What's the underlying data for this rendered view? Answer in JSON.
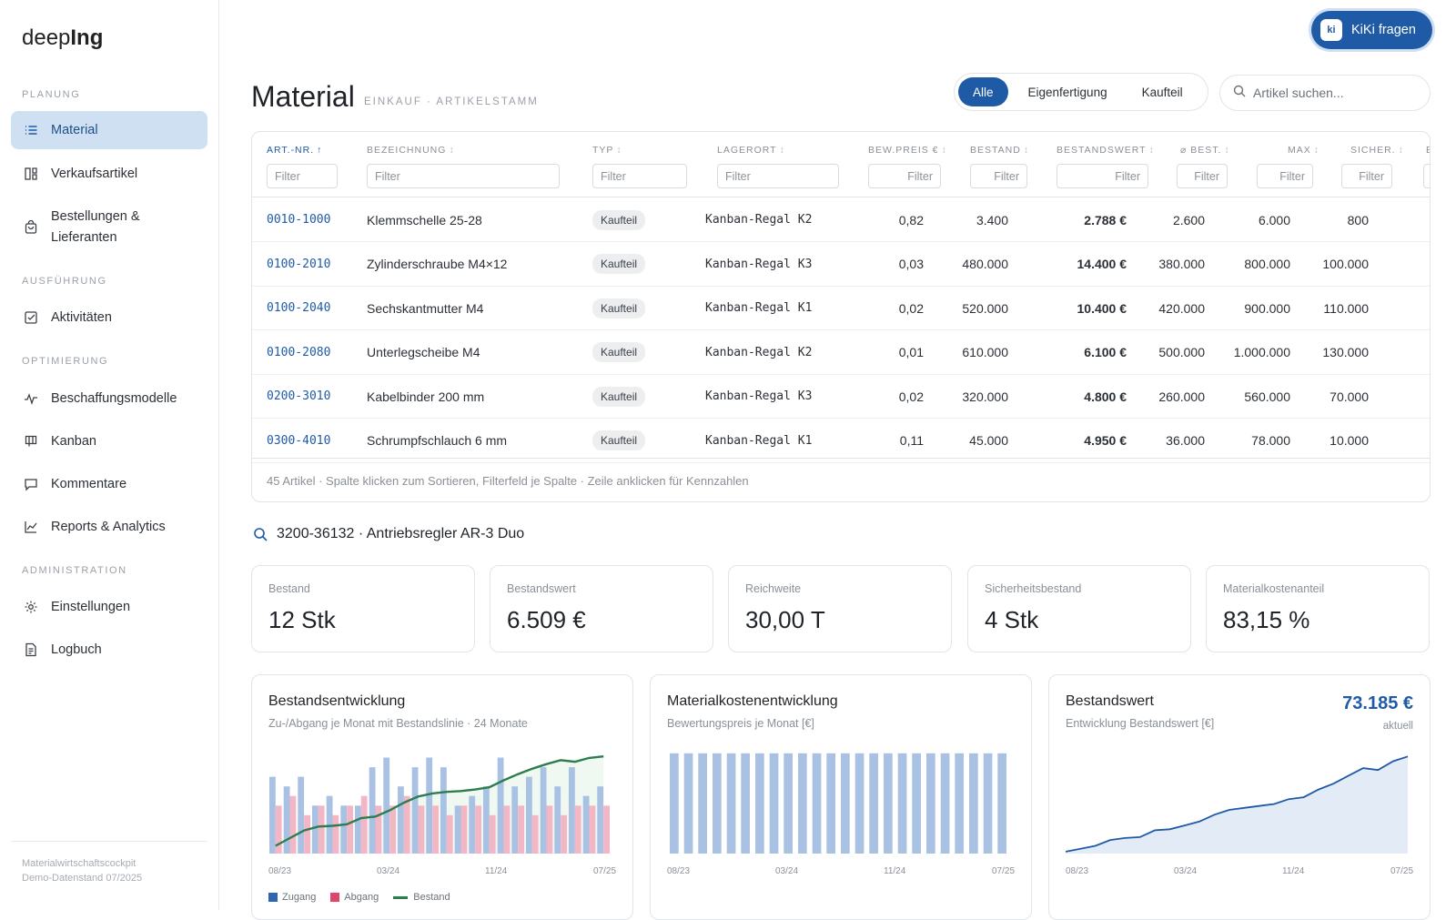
{
  "app": {
    "logo_light": "deep",
    "logo_bold": "Ing"
  },
  "sidebar": {
    "sections": [
      {
        "label": "PLANUNG"
      },
      {
        "label": "AUSFÜHRUNG"
      },
      {
        "label": "OPTIMIERUNG"
      },
      {
        "label": "ADMINISTRATION"
      }
    ],
    "items": [
      {
        "label": "Material",
        "icon": "list-icon",
        "active": true
      },
      {
        "label": "Verkaufsartikel",
        "icon": "catalog-icon"
      },
      {
        "label": "Bestellungen & Lieferanten",
        "icon": "shopping-bag-icon"
      },
      {
        "label": "Aktivitäten",
        "icon": "checkbox-icon"
      },
      {
        "label": "Beschaffungsmodelle",
        "icon": "pulse-icon"
      },
      {
        "label": "Kanban",
        "icon": "board-icon"
      },
      {
        "label": "Kommentare",
        "icon": "comment-icon"
      },
      {
        "label": "Reports & Analytics",
        "icon": "line-chart-icon"
      },
      {
        "label": "Einstellungen",
        "icon": "gear-icon"
      },
      {
        "label": "Logbuch",
        "icon": "document-icon"
      }
    ],
    "footer_line1": "Materialwirtschaftscockpit",
    "footer_line2": "Demo-Datenstand 07/2025"
  },
  "kiki": {
    "badge": "ki",
    "label": "KiKi fragen"
  },
  "header": {
    "title": "Material",
    "subtitle": "EINKAUF · ARTIKELSTAMM"
  },
  "filter_tabs": [
    "Alle",
    "Eigenfertigung",
    "Kaufteil"
  ],
  "search": {
    "placeholder": "Artikel suchen..."
  },
  "table": {
    "columns": [
      "ART.-NR.",
      "BEZEICHNUNG",
      "TYP",
      "LAGERORT",
      "BEW.PREIS €",
      "BESTAND",
      "BESTANDSWERT",
      "⌀ BEST.",
      "MAX",
      "SICHER.",
      "B"
    ],
    "filter_placeholder": "Filter",
    "rows": [
      {
        "artnr": "0010-1000",
        "bez": "Klemmschelle 25-28",
        "typ": "Kaufteil",
        "lager": "Kanban-Regal K2",
        "preis": "0,82",
        "bestand": "3.400",
        "wert": "2.788 €",
        "avg": "2.600",
        "max": "6.000",
        "sicher": "800"
      },
      {
        "artnr": "0100-2010",
        "bez": "Zylinderschraube M4×12",
        "typ": "Kaufteil",
        "lager": "Kanban-Regal K3",
        "preis": "0,03",
        "bestand": "480.000",
        "wert": "14.400 €",
        "avg": "380.000",
        "max": "800.000",
        "sicher": "100.000"
      },
      {
        "artnr": "0100-2040",
        "bez": "Sechskantmutter M4",
        "typ": "Kaufteil",
        "lager": "Kanban-Regal K1",
        "preis": "0,02",
        "bestand": "520.000",
        "wert": "10.400 €",
        "avg": "420.000",
        "max": "900.000",
        "sicher": "110.000"
      },
      {
        "artnr": "0100-2080",
        "bez": "Unterlegscheibe M4",
        "typ": "Kaufteil",
        "lager": "Kanban-Regal K2",
        "preis": "0,01",
        "bestand": "610.000",
        "wert": "6.100 €",
        "avg": "500.000",
        "max": "1.000.000",
        "sicher": "130.000"
      },
      {
        "artnr": "0200-3010",
        "bez": "Kabelbinder 200 mm",
        "typ": "Kaufteil",
        "lager": "Kanban-Regal K3",
        "preis": "0,02",
        "bestand": "320.000",
        "wert": "4.800 €",
        "avg": "260.000",
        "max": "560.000",
        "sicher": "70.000"
      },
      {
        "artnr": "0300-4010",
        "bez": "Schrumpfschlauch 6 mm",
        "typ": "Kaufteil",
        "lager": "Kanban-Regal K1",
        "preis": "0,11",
        "bestand": "45.000",
        "wert": "4.950 €",
        "avg": "36.000",
        "max": "78.000",
        "sicher": "10.000"
      }
    ],
    "footer": "45 Artikel · Spalte klicken zum Sortieren, Filterfeld je Spalte · Zeile anklicken für Kennzahlen"
  },
  "detail": {
    "title": "3200-36132 · Antriebsregler AR-3 Duo",
    "kpis": [
      {
        "label": "Bestand",
        "value": "12 Stk"
      },
      {
        "label": "Bestandswert",
        "value": "6.509 €"
      },
      {
        "label": "Reichweite",
        "value": "30,00 T"
      },
      {
        "label": "Sicherheitsbestand",
        "value": "4 Stk"
      },
      {
        "label": "Materialkostenanteil",
        "value": "83,15 %"
      }
    ]
  },
  "charts": {
    "c1": {
      "title": "Bestandsentwicklung",
      "subtitle": "Zu-/Abgang je Monat mit Bestandslinie · 24 Monate",
      "ticks": [
        "08/23",
        "03/24",
        "11/24",
        "07/25"
      ],
      "legend": [
        "Zugang",
        "Abgang",
        "Bestand"
      ]
    },
    "c2": {
      "title": "Materialkostenentwicklung",
      "subtitle": "Bewertungspreis je Monat [€]",
      "ticks": [
        "08/23",
        "03/24",
        "11/24",
        "07/25"
      ]
    },
    "c3": {
      "title": "Bestandswert",
      "subtitle": "Entwicklung Bestandswert [€]",
      "value": "73.185 €",
      "value_sub": "aktuell",
      "ticks": [
        "08/23",
        "03/24",
        "11/24",
        "07/25"
      ]
    }
  },
  "colors": {
    "accent": "#1f5aa6",
    "zugang": "#a9c2e3",
    "abgang": "#f2b6c4",
    "bestand": "#2e7d4f",
    "area": "#e3ebf6"
  },
  "chart_data": [
    {
      "type": "bar",
      "title": "Bestandsentwicklung",
      "x": [
        "08/23",
        "09/23",
        "10/23",
        "11/23",
        "12/23",
        "01/24",
        "02/24",
        "03/24",
        "04/24",
        "05/24",
        "06/24",
        "07/24",
        "08/24",
        "09/24",
        "10/24",
        "11/24",
        "12/24",
        "01/25",
        "02/25",
        "03/25",
        "04/25",
        "05/25",
        "06/25",
        "07/25"
      ],
      "series": [
        {
          "name": "Zugang",
          "values": [
            8,
            7,
            8,
            5,
            6,
            5,
            5,
            9,
            10,
            7,
            9,
            10,
            9,
            5,
            6,
            7,
            10,
            7,
            8,
            9,
            7,
            9,
            6,
            7
          ]
        },
        {
          "name": "Abgang",
          "values": [
            5,
            6,
            4,
            5,
            4,
            5,
            6,
            5,
            5,
            6,
            5,
            5,
            4,
            5,
            5,
            4,
            5,
            5,
            4,
            5,
            4,
            5,
            5,
            5
          ]
        },
        {
          "name": "Bestand",
          "values": [
            1,
            2,
            3,
            3.5,
            3.6,
            3.8,
            4.6,
            4.8,
            5.6,
            6.6,
            7.4,
            7.8,
            8,
            8.1,
            8.3,
            8.6,
            9.5,
            10.3,
            11,
            11.6,
            12.1,
            11.9,
            12.4,
            12.6
          ]
        }
      ]
    },
    {
      "type": "bar",
      "title": "Materialkostenentwicklung",
      "x": [
        "08/23",
        "09/23",
        "10/23",
        "11/23",
        "12/23",
        "01/24",
        "02/24",
        "03/24",
        "04/24",
        "05/24",
        "06/24",
        "07/24",
        "08/24",
        "09/24",
        "10/24",
        "11/24",
        "12/24",
        "01/25",
        "02/25",
        "03/25",
        "04/25",
        "05/25",
        "06/25",
        "07/25"
      ],
      "series": [
        {
          "name": "Bewertungspreis",
          "values": [
            1,
            1,
            1,
            1,
            1,
            1,
            1,
            1,
            1,
            1,
            1,
            1,
            1,
            1,
            1,
            1,
            1,
            1,
            1,
            1,
            1,
            1,
            1,
            1
          ]
        }
      ]
    },
    {
      "type": "area",
      "title": "Bestandswert",
      "x": [
        "08/23",
        "09/23",
        "10/23",
        "11/23",
        "12/23",
        "01/24",
        "02/24",
        "03/24",
        "04/24",
        "05/24",
        "06/24",
        "07/24",
        "08/24",
        "09/24",
        "10/24",
        "11/24",
        "12/24",
        "01/25",
        "02/25",
        "03/25",
        "04/25",
        "05/25",
        "06/25",
        "07/25"
      ],
      "series": [
        {
          "name": "Bestandswert",
          "values": [
            2,
            5,
            8,
            14,
            16,
            17,
            24,
            25,
            29,
            33,
            40,
            45,
            47,
            49,
            51,
            56,
            58,
            66,
            72,
            80,
            88,
            86,
            95,
            100
          ]
        }
      ]
    }
  ]
}
